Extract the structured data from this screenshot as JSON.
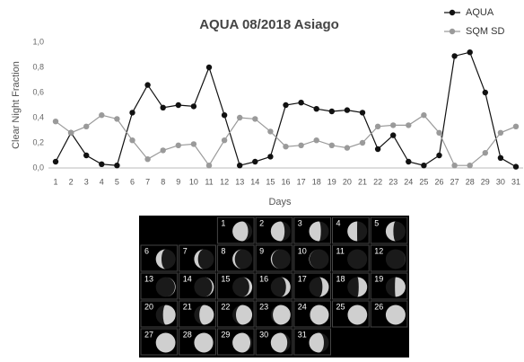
{
  "chart_data": {
    "type": "line",
    "title": "AQUA 08/2018 Asiago",
    "x_label": "Days",
    "y_label": "Clear Night Fraction",
    "categories": [
      "1",
      "2",
      "3",
      "4",
      "5",
      "6",
      "7",
      "8",
      "9",
      "10",
      "11",
      "12",
      "13",
      "14",
      "15",
      "16",
      "17",
      "18",
      "19",
      "20",
      "21",
      "22",
      "23",
      "24",
      "25",
      "26",
      "27",
      "28",
      "29",
      "30",
      "31"
    ],
    "series": [
      {
        "name": "AQUA",
        "color": "#111111",
        "values": [
          0.05,
          0.28,
          0.1,
          0.03,
          0.02,
          0.44,
          0.66,
          0.48,
          0.5,
          0.49,
          0.8,
          0.42,
          0.02,
          0.05,
          0.09,
          0.5,
          0.52,
          0.47,
          0.45,
          0.46,
          0.44,
          0.15,
          0.26,
          0.05,
          0.02,
          0.1,
          0.89,
          0.92,
          0.6,
          0.08,
          0.01
        ]
      },
      {
        "name": "SQM SD",
        "color": "#9a9a9a",
        "values": [
          0.37,
          0.28,
          0.33,
          0.42,
          0.39,
          0.22,
          0.07,
          0.14,
          0.18,
          0.19,
          0.02,
          0.22,
          0.4,
          0.39,
          0.29,
          0.17,
          0.18,
          0.22,
          0.18,
          0.16,
          0.2,
          0.33,
          0.34,
          0.34,
          0.42,
          0.28,
          0.02,
          0.02,
          0.12,
          0.28,
          0.33
        ]
      }
    ],
    "ylim": [
      0,
      1
    ],
    "yticks": [
      {
        "value": 0,
        "label": "0,0"
      },
      {
        "value": 0.2,
        "label": "0,2"
      },
      {
        "value": 0.4,
        "label": "0,4"
      },
      {
        "value": 0.6,
        "label": "0,6"
      },
      {
        "value": 0.8,
        "label": "0,8"
      },
      {
        "value": 1,
        "label": "1,0"
      }
    ],
    "grid": false,
    "legend": "upper right"
  },
  "moon_calendar": {
    "days": [
      "1",
      "2",
      "3",
      "4",
      "5",
      "6",
      "7",
      "8",
      "9",
      "10",
      "11",
      "12",
      "13",
      "14",
      "15",
      "16",
      "17",
      "18",
      "19",
      "20",
      "21",
      "22",
      "23",
      "24",
      "25",
      "26",
      "27",
      "28",
      "29",
      "30",
      "31"
    ]
  }
}
